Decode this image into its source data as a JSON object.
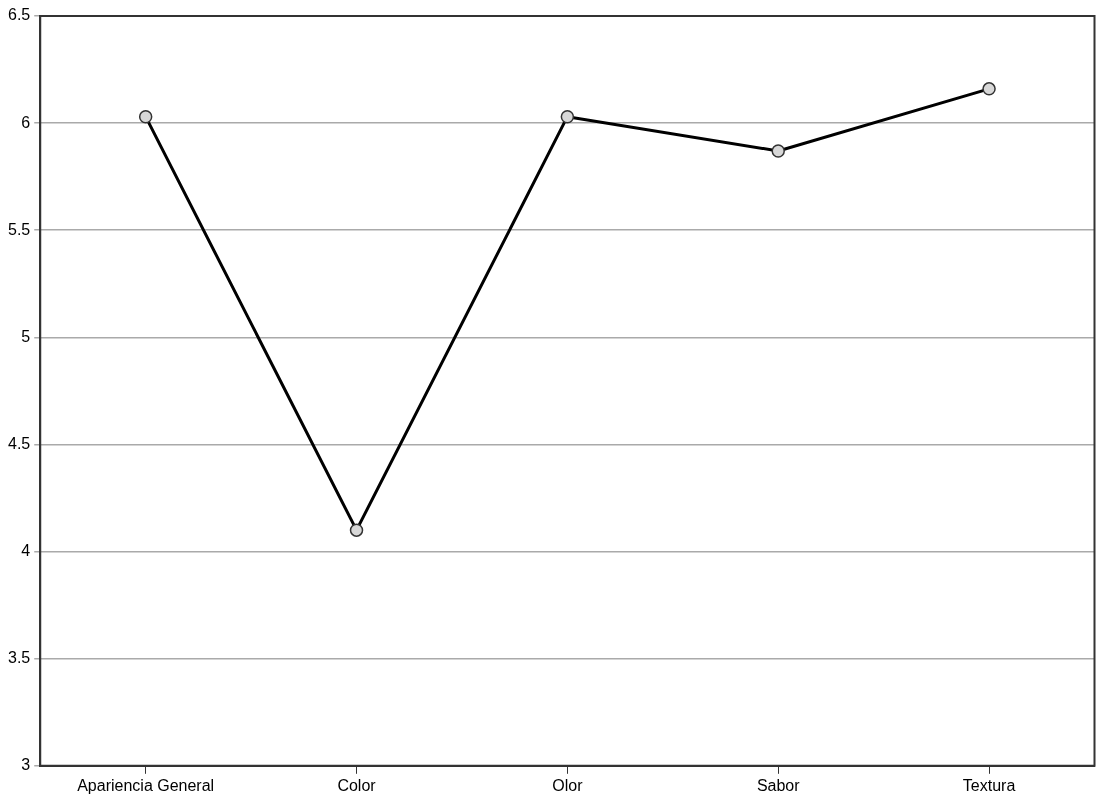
{
  "chart_data": {
    "type": "line",
    "categories": [
      "Apariencia General",
      "Color",
      "Olor",
      "Sabor",
      "Textura"
    ],
    "series": [
      {
        "color": "#000000",
        "values": [
          6.03,
          4.1,
          6.03,
          5.87,
          6.16
        ]
      }
    ],
    "ylim": [
      3,
      6.5
    ],
    "yticks": [
      3,
      3.5,
      4,
      4.5,
      5,
      5.5,
      6,
      6.5
    ],
    "grid": "y",
    "marker": "circle",
    "line_style": "solid",
    "legend": false
  }
}
